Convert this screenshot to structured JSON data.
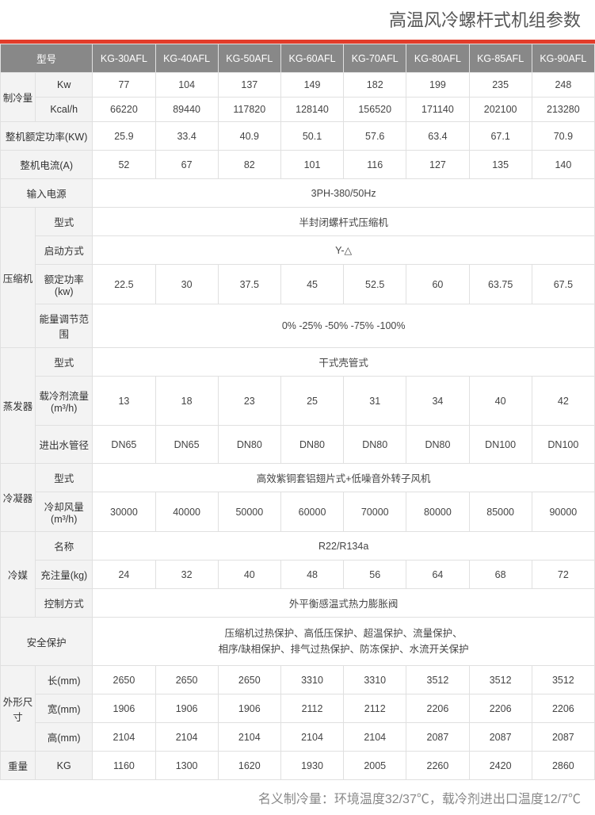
{
  "title": "高温风冷螺杆式机组参数",
  "footer": "名义制冷量：环境温度32/37℃，载冷剂进出口温度12/7℃",
  "models": [
    "KG-30AFL",
    "KG-40AFL",
    "KG-50AFL",
    "KG-60AFL",
    "KG-70AFL",
    "KG-80AFL",
    "KG-85AFL",
    "KG-90AFL"
  ],
  "labels": {
    "model": "型号",
    "cooling": "制冷量",
    "kw": "Kw",
    "kcal": "Kcal/h",
    "rated_power": "整机额定功率(KW)",
    "current": "整机电流(A)",
    "power_input": "输入电源",
    "compressor": "压缩机",
    "type": "型式",
    "start_mode": "启动方式",
    "rated_kw": "额定功率(kw)",
    "energy_range": "能量调节范围",
    "evaporator": "蒸发器",
    "coolant_flow": "载冷剂流量(m³/h)",
    "pipe": "进出水管径",
    "condenser": "冷凝器",
    "air_flow": "冷却风量(m³/h)",
    "refrigerant": "冷媒",
    "name": "名称",
    "charge": "充注量(kg)",
    "control": "控制方式",
    "safety": "安全保护",
    "dimensions": "外形尺寸",
    "length": "长(mm)",
    "width": "宽(mm)",
    "height": "高(mm)",
    "weight": "重量",
    "kg": "KG"
  },
  "spans": {
    "power_input": "3PH-380/50Hz",
    "comp_type": "半封闭螺杆式压缩机",
    "start_mode": "Y-△",
    "energy_range": "0% -25% -50% -75% -100%",
    "evap_type": "干式壳管式",
    "cond_type": "高效紫铜套铝翅片式+低噪音外转子风机",
    "refrig_name": "R22/R134a",
    "control": "外平衡感温式热力膨胀阀",
    "safety1": "压缩机过热保护、高低压保护、超温保护、流量保护、",
    "safety2": "相序/缺相保护、排气过热保护、防冻保护、水流开关保护"
  },
  "rows": {
    "kw": [
      "77",
      "104",
      "137",
      "149",
      "182",
      "199",
      "235",
      "248"
    ],
    "kcal": [
      "66220",
      "89440",
      "117820",
      "128140",
      "156520",
      "171140",
      "202100",
      "213280"
    ],
    "rated_power": [
      "25.9",
      "33.4",
      "40.9",
      "50.1",
      "57.6",
      "63.4",
      "67.1",
      "70.9"
    ],
    "current": [
      "52",
      "67",
      "82",
      "101",
      "116",
      "127",
      "135",
      "140"
    ],
    "rated_kw": [
      "22.5",
      "30",
      "37.5",
      "45",
      "52.5",
      "60",
      "63.75",
      "67.5"
    ],
    "coolant_flow": [
      "13",
      "18",
      "23",
      "25",
      "31",
      "34",
      "40",
      "42"
    ],
    "pipe": [
      "DN65",
      "DN65",
      "DN80",
      "DN80",
      "DN80",
      "DN80",
      "DN100",
      "DN100"
    ],
    "air_flow": [
      "30000",
      "40000",
      "50000",
      "60000",
      "70000",
      "80000",
      "85000",
      "90000"
    ],
    "charge": [
      "24",
      "32",
      "40",
      "48",
      "56",
      "64",
      "68",
      "72"
    ],
    "length": [
      "2650",
      "2650",
      "2650",
      "3310",
      "3310",
      "3512",
      "3512",
      "3512"
    ],
    "width": [
      "1906",
      "1906",
      "1906",
      "2112",
      "2112",
      "2206",
      "2206",
      "2206"
    ],
    "height": [
      "2104",
      "2104",
      "2104",
      "2104",
      "2104",
      "2087",
      "2087",
      "2087"
    ],
    "weight": [
      "1160",
      "1300",
      "1620",
      "1930",
      "2005",
      "2260",
      "2420",
      "2860"
    ]
  }
}
